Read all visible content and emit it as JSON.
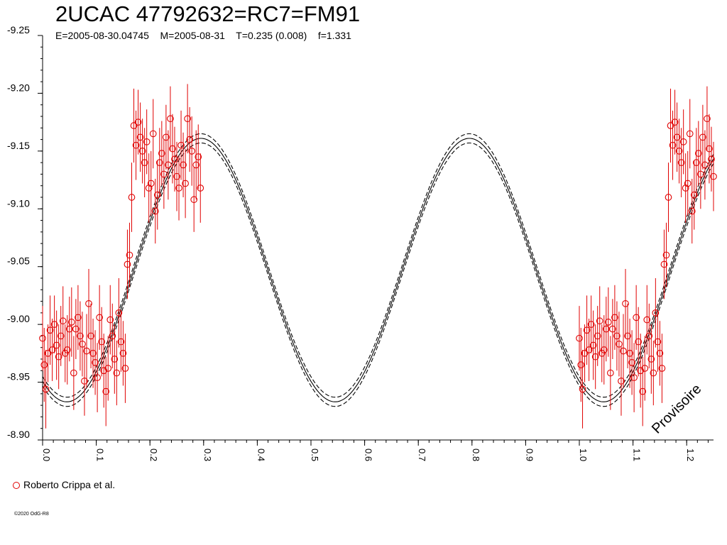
{
  "header": {
    "title": "2UCAC 47792632=RC7=FM91",
    "subtitle": "E=2005-08-30.04745    M=2005-08-31    T=0.235 (0.008)    f=1.331"
  },
  "legend": {
    "label": "Roberto Crippa et al."
  },
  "watermark": "Provisoire",
  "copyright": "©2020 OdG-R8",
  "colors": {
    "data": "#e00000",
    "model": "#000000",
    "axis": "#000000"
  },
  "chart_data": {
    "type": "scatter",
    "x_label": "",
    "y_label": "",
    "xlim": [
      0.0,
      1.25
    ],
    "ylim": [
      -8.9,
      -9.25
    ],
    "y_inverted": true,
    "grid": false,
    "x_ticks": [
      0.0,
      0.1,
      0.2,
      0.3,
      0.4,
      0.5,
      0.6,
      0.7,
      0.8,
      0.9,
      1.0,
      1.1,
      1.2
    ],
    "x_tick_labels": [
      "0.0",
      "0.1",
      "0.2",
      "0.3",
      "0.4",
      "0.5",
      "0.6",
      "0.7",
      "0.8",
      "0.9",
      "1.0",
      "1.1",
      "1.2"
    ],
    "y_ticks": [
      -9.25,
      -9.2,
      -9.15,
      -9.1,
      -9.05,
      -9.0,
      -8.95,
      -8.9
    ],
    "y_tick_labels": [
      "-9.25",
      "-9.20",
      "-9.15",
      "-9.10",
      "-9.05",
      "-9.00",
      "-8.95",
      "-8.90"
    ],
    "model": {
      "mean": -9.047,
      "amplitude": 0.114,
      "max_phase": 0.295,
      "period_phase": 0.5,
      "curves": [
        {
          "name": "fit",
          "offset": 0.0,
          "style": "solid"
        },
        {
          "name": "upper",
          "offset": -0.004,
          "style": "dash"
        },
        {
          "name": "lower",
          "offset": 0.004,
          "style": "dash"
        }
      ]
    },
    "series": [
      {
        "name": "Roberto Crippa et al.",
        "marker": "circle",
        "repeat_shift": 1.0,
        "points": [
          {
            "x": 0.0,
            "y": -8.988,
            "err": 0.028
          },
          {
            "x": 0.003,
            "y": -8.965,
            "err": 0.032
          },
          {
            "x": 0.006,
            "y": -8.944,
            "err": 0.034
          },
          {
            "x": 0.01,
            "y": -8.975,
            "err": 0.025
          },
          {
            "x": 0.014,
            "y": -8.995,
            "err": 0.03
          },
          {
            "x": 0.018,
            "y": -8.978,
            "err": 0.027
          },
          {
            "x": 0.022,
            "y": -9.0,
            "err": 0.025
          },
          {
            "x": 0.026,
            "y": -8.982,
            "err": 0.03
          },
          {
            "x": 0.03,
            "y": -8.972,
            "err": 0.028
          },
          {
            "x": 0.034,
            "y": -8.99,
            "err": 0.026
          },
          {
            "x": 0.038,
            "y": -9.003,
            "err": 0.03
          },
          {
            "x": 0.042,
            "y": -8.975,
            "err": 0.025
          },
          {
            "x": 0.046,
            "y": -8.978,
            "err": 0.03
          },
          {
            "x": 0.05,
            "y": -8.996,
            "err": 0.028
          },
          {
            "x": 0.054,
            "y": -9.002,
            "err": 0.03
          },
          {
            "x": 0.058,
            "y": -8.958,
            "err": 0.032
          },
          {
            "x": 0.062,
            "y": -8.996,
            "err": 0.026
          },
          {
            "x": 0.066,
            "y": -9.006,
            "err": 0.028
          },
          {
            "x": 0.07,
            "y": -8.99,
            "err": 0.03
          },
          {
            "x": 0.074,
            "y": -8.983,
            "err": 0.028
          },
          {
            "x": 0.078,
            "y": -8.951,
            "err": 0.03
          },
          {
            "x": 0.082,
            "y": -8.977,
            "err": 0.032
          },
          {
            "x": 0.086,
            "y": -9.018,
            "err": 0.03
          },
          {
            "x": 0.09,
            "y": -8.99,
            "err": 0.028
          },
          {
            "x": 0.094,
            "y": -8.975,
            "err": 0.03
          },
          {
            "x": 0.098,
            "y": -8.967,
            "err": 0.028
          },
          {
            "x": 0.102,
            "y": -8.954,
            "err": 0.03
          },
          {
            "x": 0.106,
            "y": -9.006,
            "err": 0.028
          },
          {
            "x": 0.11,
            "y": -8.985,
            "err": 0.03
          },
          {
            "x": 0.114,
            "y": -8.96,
            "err": 0.032
          },
          {
            "x": 0.118,
            "y": -8.942,
            "err": 0.03
          },
          {
            "x": 0.122,
            "y": -8.962,
            "err": 0.028
          },
          {
            "x": 0.126,
            "y": -9.004,
            "err": 0.03
          },
          {
            "x": 0.13,
            "y": -8.99,
            "err": 0.028
          },
          {
            "x": 0.134,
            "y": -8.97,
            "err": 0.03
          },
          {
            "x": 0.138,
            "y": -8.958,
            "err": 0.028
          },
          {
            "x": 0.142,
            "y": -9.01,
            "err": 0.03
          },
          {
            "x": 0.146,
            "y": -8.985,
            "err": 0.026
          },
          {
            "x": 0.15,
            "y": -8.975,
            "err": 0.028
          },
          {
            "x": 0.154,
            "y": -8.962,
            "err": 0.03
          },
          {
            "x": 0.158,
            "y": -9.052,
            "err": 0.03
          },
          {
            "x": 0.162,
            "y": -9.06,
            "err": 0.028
          },
          {
            "x": 0.166,
            "y": -9.11,
            "err": 0.03
          },
          {
            "x": 0.17,
            "y": -9.172,
            "err": 0.032
          },
          {
            "x": 0.174,
            "y": -9.155,
            "err": 0.03
          },
          {
            "x": 0.178,
            "y": -9.175,
            "err": 0.028
          },
          {
            "x": 0.182,
            "y": -9.162,
            "err": 0.03
          },
          {
            "x": 0.186,
            "y": -9.15,
            "err": 0.028
          },
          {
            "x": 0.19,
            "y": -9.14,
            "err": 0.03
          },
          {
            "x": 0.194,
            "y": -9.158,
            "err": 0.028
          },
          {
            "x": 0.198,
            "y": -9.118,
            "err": 0.03
          },
          {
            "x": 0.202,
            "y": -9.122,
            "err": 0.028
          },
          {
            "x": 0.206,
            "y": -9.165,
            "err": 0.03
          },
          {
            "x": 0.21,
            "y": -9.098,
            "err": 0.028
          },
          {
            "x": 0.214,
            "y": -9.112,
            "err": 0.03
          },
          {
            "x": 0.218,
            "y": -9.14,
            "err": 0.03
          },
          {
            "x": 0.222,
            "y": -9.148,
            "err": 0.028
          },
          {
            "x": 0.226,
            "y": -9.13,
            "err": 0.03
          },
          {
            "x": 0.23,
            "y": -9.162,
            "err": 0.028
          },
          {
            "x": 0.234,
            "y": -9.138,
            "err": 0.03
          },
          {
            "x": 0.238,
            "y": -9.178,
            "err": 0.028
          },
          {
            "x": 0.242,
            "y": -9.152,
            "err": 0.03
          },
          {
            "x": 0.246,
            "y": -9.143,
            "err": 0.028
          },
          {
            "x": 0.25,
            "y": -9.128,
            "err": 0.03
          },
          {
            "x": 0.254,
            "y": -9.118,
            "err": 0.028
          },
          {
            "x": 0.258,
            "y": -9.155,
            "err": 0.03
          },
          {
            "x": 0.262,
            "y": -9.138,
            "err": 0.028
          },
          {
            "x": 0.266,
            "y": -9.122,
            "err": 0.03
          },
          {
            "x": 0.27,
            "y": -9.178,
            "err": 0.03
          },
          {
            "x": 0.274,
            "y": -9.16,
            "err": 0.028
          },
          {
            "x": 0.278,
            "y": -9.15,
            "err": 0.03
          },
          {
            "x": 0.282,
            "y": -9.108,
            "err": 0.028
          },
          {
            "x": 0.286,
            "y": -9.138,
            "err": 0.03
          },
          {
            "x": 0.29,
            "y": -9.145,
            "err": 0.028
          },
          {
            "x": 0.294,
            "y": -9.118,
            "err": 0.03
          }
        ]
      }
    ]
  }
}
